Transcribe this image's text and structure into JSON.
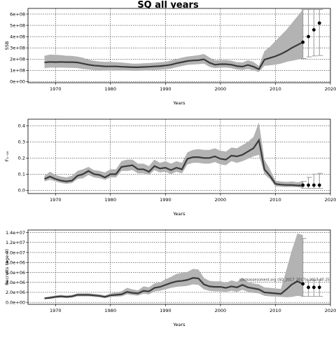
{
  "title": "SQ all years",
  "chart_data": [
    {
      "type": "line",
      "xlabel": "Years",
      "ylabel": "SSB",
      "xlim": [
        1965,
        2020
      ],
      "ylim": [
        -10000000,
        650000000
      ],
      "xticks": [
        1970,
        1980,
        1990,
        2000,
        2010,
        2020
      ],
      "yticks": [
        0,
        100000000,
        200000000,
        300000000,
        400000000,
        500000000,
        600000000
      ],
      "ytick_labels": [
        "0e+00",
        "1e+08",
        "2e+08",
        "3e+08",
        "4e+08",
        "5e+08",
        "6e+08"
      ],
      "grid": true,
      "series": [
        {
          "x": [
            1968,
            1969,
            1970,
            1971,
            1972,
            1973,
            1974,
            1975,
            1976,
            1977,
            1978,
            1979,
            1980,
            1981,
            1982,
            1983,
            1984,
            1985,
            1986,
            1987,
            1988,
            1989,
            1990,
            1991,
            1992,
            1993,
            1994,
            1995,
            1996,
            1997,
            1998,
            1999,
            2000,
            2001,
            2002,
            2003,
            2004,
            2005,
            2006,
            2007,
            2008,
            2009,
            2010,
            2011,
            2012,
            2013,
            2014,
            2015
          ],
          "median": [
            170,
            175,
            173,
            175,
            173,
            173,
            170,
            160,
            150,
            143,
            140,
            135,
            135,
            135,
            132,
            130,
            128,
            128,
            130,
            132,
            135,
            138,
            143,
            150,
            163,
            173,
            183,
            188,
            190,
            198,
            168,
            150,
            155,
            155,
            150,
            138,
            133,
            148,
            133,
            110,
            195,
            210,
            225,
            245,
            270,
            300,
            325,
            350
          ],
          "upper": [
            230,
            240,
            238,
            235,
            230,
            228,
            222,
            212,
            195,
            185,
            178,
            175,
            175,
            173,
            170,
            165,
            160,
            160,
            163,
            165,
            168,
            172,
            175,
            188,
            200,
            213,
            223,
            228,
            235,
            245,
            215,
            190,
            190,
            192,
            185,
            172,
            170,
            190,
            175,
            140,
            270,
            310,
            360,
            410,
            460,
            520,
            580,
            640
          ],
          "lower": [
            120,
            125,
            125,
            125,
            123,
            122,
            120,
            112,
            108,
            103,
            102,
            100,
            100,
            100,
            100,
            98,
            96,
            96,
            98,
            100,
            103,
            105,
            110,
            115,
            128,
            138,
            148,
            152,
            155,
            160,
            132,
            120,
            125,
            125,
            120,
            108,
            104,
            112,
            100,
            85,
            140,
            145,
            150,
            160,
            175,
            185,
            195,
            205
          ],
          "scale": 1000000
        }
      ],
      "projection": {
        "x": [
          2015,
          2016,
          2017,
          2018
        ],
        "median": [
          350,
          400,
          460,
          520
        ],
        "upper": [
          640,
          640,
          640,
          640
        ],
        "lower": [
          205,
          220,
          228,
          232
        ],
        "scale": 1000000
      }
    },
    {
      "type": "line",
      "xlabel": "Years",
      "ylabel": "F₁₋₁₆",
      "xlim": [
        1965,
        2020
      ],
      "ylim": [
        -0.02,
        0.44
      ],
      "xticks": [
        1970,
        1980,
        1990,
        2000,
        2010,
        2020
      ],
      "yticks": [
        0,
        0.1,
        0.2,
        0.3,
        0.4
      ],
      "ytick_labels": [
        "0.0",
        "0.1",
        "0.2",
        "0.3",
        "0.4"
      ],
      "grid": true,
      "series": [
        {
          "x": [
            1968,
            1969,
            1970,
            1971,
            1972,
            1973,
            1974,
            1975,
            1976,
            1977,
            1978,
            1979,
            1980,
            1981,
            1982,
            1983,
            1984,
            1985,
            1986,
            1987,
            1988,
            1989,
            1990,
            1991,
            1992,
            1993,
            1994,
            1995,
            1996,
            1997,
            1998,
            1999,
            2000,
            2001,
            2002,
            2003,
            2004,
            2005,
            2006,
            2007,
            2008,
            2009,
            2010,
            2011,
            2012,
            2013,
            2014,
            2015
          ],
          "median": [
            0.07,
            0.085,
            0.07,
            0.06,
            0.055,
            0.06,
            0.09,
            0.1,
            0.12,
            0.1,
            0.095,
            0.08,
            0.1,
            0.1,
            0.145,
            0.15,
            0.155,
            0.13,
            0.13,
            0.115,
            0.15,
            0.135,
            0.14,
            0.125,
            0.14,
            0.13,
            0.195,
            0.205,
            0.205,
            0.2,
            0.2,
            0.21,
            0.195,
            0.19,
            0.215,
            0.21,
            0.22,
            0.24,
            0.26,
            0.31,
            0.13,
            0.09,
            0.04,
            0.035,
            0.033,
            0.033,
            0.03,
            0.03
          ],
          "upper": [
            0.09,
            0.115,
            0.095,
            0.085,
            0.08,
            0.09,
            0.12,
            0.13,
            0.145,
            0.125,
            0.12,
            0.11,
            0.13,
            0.13,
            0.18,
            0.19,
            0.19,
            0.165,
            0.165,
            0.15,
            0.19,
            0.17,
            0.18,
            0.165,
            0.18,
            0.17,
            0.235,
            0.25,
            0.255,
            0.25,
            0.25,
            0.26,
            0.245,
            0.24,
            0.265,
            0.26,
            0.28,
            0.3,
            0.33,
            0.42,
            0.19,
            0.13,
            0.06,
            0.055,
            0.052,
            0.055,
            0.05,
            0.055
          ],
          "lower": [
            0.055,
            0.065,
            0.055,
            0.045,
            0.04,
            0.045,
            0.07,
            0.075,
            0.095,
            0.08,
            0.075,
            0.065,
            0.08,
            0.08,
            0.12,
            0.12,
            0.125,
            0.105,
            0.105,
            0.095,
            0.125,
            0.11,
            0.115,
            0.1,
            0.115,
            0.105,
            0.16,
            0.17,
            0.17,
            0.165,
            0.165,
            0.175,
            0.16,
            0.155,
            0.18,
            0.17,
            0.18,
            0.195,
            0.21,
            0.22,
            0.1,
            0.07,
            0.025,
            0.022,
            0.02,
            0.02,
            0.02,
            0.015
          ]
        }
      ],
      "projection": {
        "x": [
          2015,
          2016,
          2017,
          2018
        ],
        "median": [
          0.032,
          0.032,
          0.032,
          0.032
        ],
        "upper": [
          0.055,
          0.08,
          0.1,
          0.105
        ],
        "lower": [
          0.013,
          0.012,
          0.012,
          0.012
        ],
        "scale": 1
      }
    },
    {
      "type": "line",
      "xlabel": "Years",
      "ylabel": "Recruits (age 0)",
      "xlim": [
        1965,
        2020
      ],
      "ylim": [
        -400000,
        14500000
      ],
      "xticks": [
        1970,
        1980,
        1990,
        2000,
        2010,
        2020
      ],
      "yticks": [
        0,
        2000000,
        4000000,
        6000000,
        8000000,
        10000000,
        12000000,
        14000000
      ],
      "ytick_labels": [
        "0.0e+00",
        "2.0e+06",
        "4.0e+06",
        "6.0e+06",
        "8.0e+06",
        "1.0e+07",
        "1.2e+07",
        "1.4e+07"
      ],
      "grid": true,
      "annotation": "stockassessment.org (SQ_2017_2017)c 2017-07-25",
      "series": [
        {
          "x": [
            1968,
            1969,
            1970,
            1971,
            1972,
            1973,
            1974,
            1975,
            1976,
            1977,
            1978,
            1979,
            1980,
            1981,
            1982,
            1983,
            1984,
            1985,
            1986,
            1987,
            1988,
            1989,
            1990,
            1991,
            1992,
            1993,
            1994,
            1995,
            1996,
            1997,
            1998,
            1999,
            2000,
            2001,
            2002,
            2003,
            2004,
            2005,
            2006,
            2007,
            2008,
            2009,
            2010,
            2011,
            2012,
            2013,
            2014,
            2015
          ],
          "median": [
            0.8,
            0.9,
            1.1,
            1.2,
            1.1,
            1.2,
            1.5,
            1.5,
            1.5,
            1.4,
            1.3,
            1.1,
            1.4,
            1.5,
            1.6,
            2.1,
            1.9,
            1.8,
            2.3,
            2.2,
            2.9,
            3.1,
            3.5,
            3.9,
            4.2,
            4.3,
            4.5,
            4.9,
            4.8,
            3.6,
            3.2,
            3.1,
            3.1,
            2.9,
            3.2,
            3.0,
            3.5,
            3.0,
            2.8,
            2.6,
            2.0,
            1.9,
            1.8,
            1.7,
            2.6,
            3.6,
            4.2,
            3.7
          ],
          "upper": [
            1.0,
            1.2,
            1.4,
            1.5,
            1.4,
            1.5,
            1.8,
            1.8,
            1.8,
            1.7,
            1.6,
            1.4,
            1.8,
            2.0,
            2.2,
            2.9,
            2.6,
            2.4,
            3.2,
            3.0,
            3.8,
            4.0,
            4.6,
            5.1,
            5.7,
            5.9,
            6.1,
            6.7,
            6.6,
            4.9,
            4.3,
            4.2,
            4.2,
            3.9,
            4.4,
            4.1,
            4.9,
            4.1,
            3.8,
            3.6,
            3.0,
            2.9,
            2.8,
            2.7,
            6.5,
            10.5,
            13.8,
            13.5
          ],
          "lower": [
            0.6,
            0.7,
            0.85,
            0.95,
            0.85,
            0.95,
            1.2,
            1.2,
            1.2,
            1.1,
            1.0,
            0.85,
            1.1,
            1.15,
            1.2,
            1.6,
            1.45,
            1.35,
            1.7,
            1.6,
            2.2,
            2.3,
            2.6,
            2.9,
            3.1,
            3.2,
            3.3,
            3.6,
            3.5,
            2.6,
            2.3,
            2.2,
            2.2,
            2.1,
            2.3,
            2.1,
            2.5,
            2.1,
            1.9,
            1.8,
            1.3,
            1.2,
            1.15,
            1.1,
            1.0,
            1.1,
            1.3,
            1.2
          ],
          "scale": 1000000
        }
      ],
      "projection": {
        "x": [
          2015,
          2016,
          2017,
          2018
        ],
        "median": [
          3.7,
          3.0,
          3.0,
          3.0
        ],
        "upper": [
          12.8,
          4.5,
          4.5,
          4.5
        ],
        "lower": [
          1.2,
          1.2,
          1.2,
          1.2
        ],
        "scale": 1000000
      }
    }
  ]
}
